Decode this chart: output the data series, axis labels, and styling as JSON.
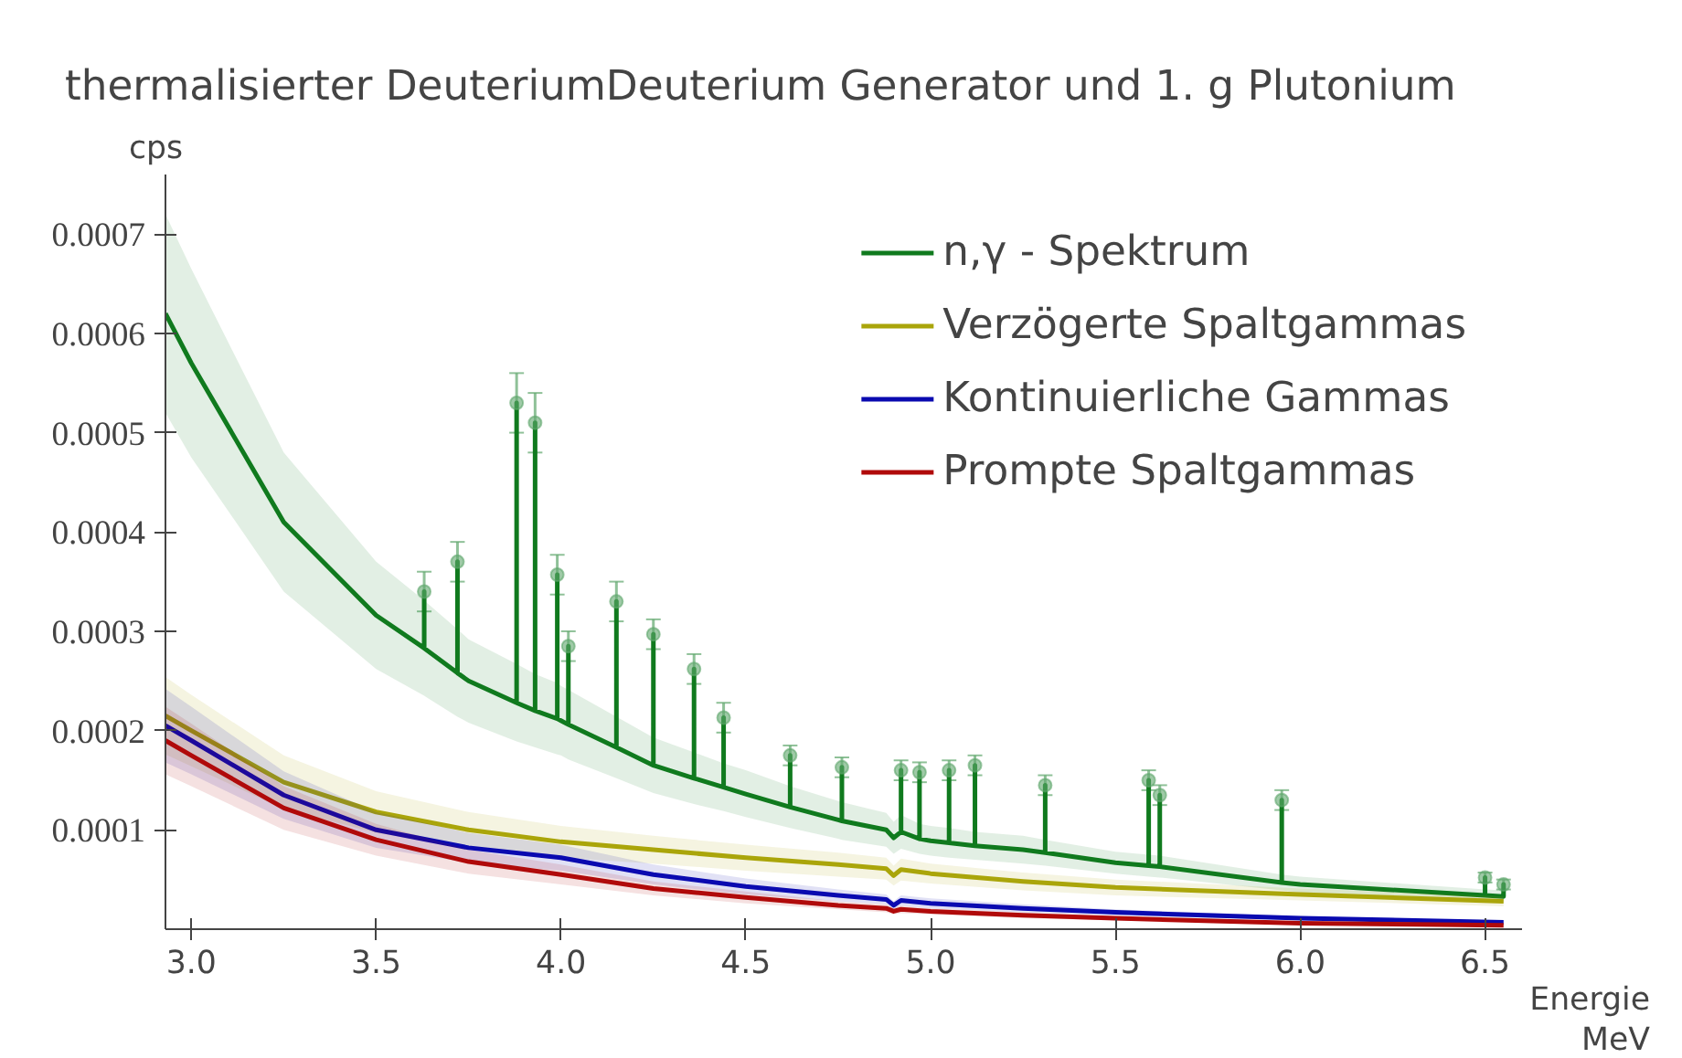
{
  "chart_data": {
    "type": "line",
    "title": "thermalisierter DeuteriumDeuterium Generator und 1. g Plutonium",
    "xlabel": "Energie\nMeV",
    "ylabel": "cps",
    "xlim": [
      2.93,
      6.6
    ],
    "ylim": [
      0,
      0.00076
    ],
    "xticks": [
      {
        "value": 3,
        "label": "3.0"
      },
      3.5,
      {
        "value": 4,
        "label": "4.0"
      },
      4.5,
      {
        "value": 5,
        "label": "5.0"
      },
      5.5,
      {
        "value": 6,
        "label": "6.0"
      },
      6.5
    ],
    "yticks": [
      0.0001,
      0.0002,
      0.0003,
      0.0004,
      0.0005,
      0.0006,
      0.0007
    ],
    "grid": false,
    "legend": "top right",
    "line_style": "solid",
    "series": [
      {
        "name": "n,γ - Spektrum",
        "color": "#107a1e",
        "x": [
          2.93,
          3.0,
          3.25,
          3.5,
          3.63,
          3.63,
          3.63,
          3.72,
          3.72,
          3.72,
          3.75,
          3.88,
          3.88,
          3.88,
          3.93,
          3.93,
          3.93,
          3.99,
          3.99,
          3.99,
          4.0,
          4.02,
          4.02,
          4.02,
          4.15,
          4.15,
          4.15,
          4.25,
          4.25,
          4.25,
          4.36,
          4.36,
          4.36,
          4.44,
          4.44,
          4.44,
          4.5,
          4.62,
          4.62,
          4.62,
          4.75,
          4.76,
          4.76,
          4.76,
          4.88,
          4.9,
          4.92,
          4.92,
          4.92,
          4.97,
          4.97,
          4.97,
          5.0,
          5.05,
          5.05,
          5.05,
          5.12,
          5.12,
          5.12,
          5.25,
          5.31,
          5.31,
          5.31,
          5.5,
          5.59,
          5.59,
          5.59,
          5.62,
          5.62,
          5.62,
          5.95,
          5.95,
          5.95,
          6.0,
          6.5,
          6.5,
          6.5,
          6.55,
          6.55,
          6.55
        ],
        "values": [
          0.00062,
          0.00057,
          0.00041,
          0.000316,
          0.000283,
          0.00034,
          0.000283,
          0.000258,
          0.00037,
          0.000258,
          0.00025,
          0.000228,
          0.00053,
          0.000228,
          0.00022,
          0.00051,
          0.00022,
          0.000212,
          0.000357,
          0.000212,
          0.00021,
          0.000206,
          0.000285,
          0.000206,
          0.000183,
          0.00033,
          0.000183,
          0.000165,
          0.000297,
          0.000165,
          0.000152,
          0.000262,
          0.000152,
          0.000143,
          0.000213,
          0.000143,
          0.000136,
          0.000123,
          0.000175,
          0.000123,
          0.00011,
          0.000109,
          0.000163,
          0.000109,
          0.0001,
          9.2e-05,
          9.8e-05,
          0.00016,
          9.8e-05,
          9.1e-05,
          0.000158,
          9.1e-05,
          8.9e-05,
          8.7e-05,
          0.00016,
          8.7e-05,
          8.4e-05,
          0.000165,
          8.4e-05,
          8e-05,
          7.7e-05,
          0.000145,
          7.7e-05,
          6.7e-05,
          6.4e-05,
          0.00015,
          6.4e-05,
          6.3e-05,
          0.000135,
          6.3e-05,
          4.7e-05,
          0.00013,
          4.7e-05,
          4.5e-05,
          3.4e-05,
          5.2e-05,
          3.4e-05,
          3.3e-05,
          4.5e-05,
          3.3e-05
        ],
        "upper": [
          0.00072,
          0.000665,
          0.00048,
          0.00037,
          0.000331,
          0.000331,
          0.000331,
          0.000302,
          0.000302,
          0.000302,
          0.000292,
          0.000267,
          0.000267,
          0.000267,
          0.000257,
          0.000257,
          0.000257,
          0.000248,
          0.000248,
          0.000248,
          0.000245,
          0.000241,
          0.000241,
          0.000241,
          0.000214,
          0.000214,
          0.000214,
          0.000193,
          0.000193,
          0.000193,
          0.000178,
          0.000178,
          0.000178,
          0.000167,
          0.000167,
          0.000167,
          0.00016,
          0.000144,
          0.000144,
          0.000144,
          0.000129,
          0.000128,
          0.000128,
          0.000128,
          0.000117,
          0.000108,
          0.000115,
          0.000115,
          0.000115,
          0.000106,
          0.000106,
          0.000106,
          0.000104,
          0.000102,
          0.000102,
          0.000102,
          9.8e-05,
          9.8e-05,
          9.8e-05,
          9.4e-05,
          9e-05,
          9e-05,
          9e-05,
          7.8e-05,
          7.5e-05,
          7.5e-05,
          7.5e-05,
          7.4e-05,
          7.4e-05,
          7.4e-05,
          5.5e-05,
          5.5e-05,
          5.5e-05,
          5.3e-05,
          4e-05,
          4e-05,
          4e-05,
          3.9e-05,
          3.9e-05,
          3.9e-05
        ],
        "lower": [
          0.00052,
          0.000475,
          0.00034,
          0.000262,
          0.000235,
          0.000235,
          0.000235,
          0.000214,
          0.000214,
          0.000214,
          0.000208,
          0.000189,
          0.000189,
          0.000189,
          0.000183,
          0.000183,
          0.000183,
          0.000176,
          0.000176,
          0.000176,
          0.000175,
          0.000171,
          0.000171,
          0.000171,
          0.000152,
          0.000152,
          0.000152,
          0.000137,
          0.000137,
          0.000137,
          0.000126,
          0.000126,
          0.000126,
          0.000119,
          0.000119,
          0.000119,
          0.000113,
          0.000102,
          0.000102,
          0.000102,
          9.1e-05,
          9e-05,
          9e-05,
          9e-05,
          8.3e-05,
          7.6e-05,
          8.1e-05,
          8.1e-05,
          8.1e-05,
          7.6e-05,
          7.6e-05,
          7.6e-05,
          7.4e-05,
          7.2e-05,
          7.2e-05,
          7.2e-05,
          7e-05,
          7e-05,
          7e-05,
          6.6e-05,
          6.4e-05,
          6.4e-05,
          6.4e-05,
          5.6e-05,
          5.3e-05,
          5.3e-05,
          5.3e-05,
          5.2e-05,
          5.2e-05,
          5.2e-05,
          3.9e-05,
          3.9e-05,
          3.9e-05,
          3.7e-05,
          2.8e-05,
          2.8e-05,
          2.8e-05,
          2.7e-05,
          2.7e-05,
          2.7e-05
        ]
      },
      {
        "type": "scatter",
        "marker": "circle",
        "color": "#5fa66c",
        "x": [
          3.63,
          3.72,
          3.88,
          3.93,
          3.99,
          4.02,
          4.15,
          4.25,
          4.36,
          4.44,
          4.62,
          4.76,
          4.92,
          4.97,
          5.05,
          5.12,
          5.31,
          5.59,
          5.62,
          5.95,
          6.5,
          6.55
        ],
        "values": [
          0.00034,
          0.00037,
          0.00053,
          0.00051,
          0.000357,
          0.000285,
          0.00033,
          0.000297,
          0.000262,
          0.000213,
          0.000175,
          0.000163,
          0.00016,
          0.000158,
          0.00016,
          0.000165,
          0.000145,
          0.00015,
          0.000135,
          0.00013,
          5.2e-05,
          4.5e-05
        ],
        "errors": [
          2e-05,
          2e-05,
          3e-05,
          3e-05,
          2e-05,
          1.5e-05,
          2e-05,
          1.5e-05,
          1.5e-05,
          1.5e-05,
          1e-05,
          1e-05,
          1e-05,
          1e-05,
          1e-05,
          1e-05,
          1e-05,
          1e-05,
          1e-05,
          1e-05,
          5e-06,
          5e-06
        ]
      },
      {
        "name": "Verzögerte Spaltgammas",
        "color": "#aaa50a",
        "x": [
          2.93,
          3.0,
          3.25,
          3.5,
          3.75,
          4.0,
          4.25,
          4.5,
          4.75,
          4.88,
          4.9,
          4.92,
          5.0,
          5.25,
          5.5,
          6.0,
          6.55
        ],
        "values": [
          0.000215,
          0.0002,
          0.000148,
          0.000118,
          0.0001,
          8.8e-05,
          8e-05,
          7.2e-05,
          6.5e-05,
          6.1e-05,
          5.4e-05,
          6e-05,
          5.6e-05,
          4.8e-05,
          4.2e-05,
          3.5e-05,
          2.8e-05
        ],
        "upper": [
          0.000254,
          0.000236,
          0.000175,
          0.000139,
          0.000118,
          0.000104,
          9.4e-05,
          8.5e-05,
          7.7e-05,
          7.2e-05,
          6.4e-05,
          7.1e-05,
          6.6e-05,
          5.7e-05,
          5e-05,
          4.1e-05,
          3.3e-05
        ],
        "lower": [
          0.000176,
          0.000164,
          0.000121,
          9.7e-05,
          8.2e-05,
          7.2e-05,
          6.6e-05,
          5.9e-05,
          5.3e-05,
          5e-05,
          4.4e-05,
          4.9e-05,
          4.6e-05,
          3.9e-05,
          3.4e-05,
          2.9e-05,
          2.3e-05
        ]
      },
      {
        "name": "Kontinuierliche Gammas",
        "color": "#0a0ab0",
        "x": [
          2.93,
          3.0,
          3.25,
          3.5,
          3.75,
          4.0,
          4.25,
          4.5,
          4.75,
          4.88,
          4.9,
          4.92,
          5.0,
          5.25,
          5.5,
          6.0,
          6.55
        ],
        "values": [
          0.000205,
          0.00019,
          0.000135,
          0.0001,
          8.2e-05,
          7.2e-05,
          5.5e-05,
          4.3e-05,
          3.4e-05,
          3e-05,
          2.4e-05,
          2.9e-05,
          2.6e-05,
          2.1e-05,
          1.7e-05,
          1.1e-05,
          7e-06
        ],
        "upper": [
          0.000242,
          0.000224,
          0.000159,
          0.000118,
          9.7e-05,
          8.5e-05,
          6.5e-05,
          5.1e-05,
          4e-05,
          3.5e-05,
          2.8e-05,
          3.4e-05,
          3.1e-05,
          2.5e-05,
          2e-05,
          1.3e-05,
          8e-06
        ],
        "lower": [
          0.000168,
          0.000156,
          0.000111,
          8.2e-05,
          6.7e-05,
          5.9e-05,
          4.5e-05,
          3.5e-05,
          2.8e-05,
          2.5e-05,
          2e-05,
          2.4e-05,
          2.1e-05,
          1.7e-05,
          1.4e-05,
          9e-06,
          6e-06
        ]
      },
      {
        "name": "Prompte Spaltgammas",
        "color": "#b00a0a",
        "x": [
          2.93,
          3.0,
          3.25,
          3.5,
          3.75,
          4.0,
          4.25,
          4.5,
          4.75,
          4.88,
          4.9,
          4.92,
          5.0,
          5.25,
          5.5,
          6.0,
          6.55
        ],
        "values": [
          0.00019,
          0.000175,
          0.000122,
          9e-05,
          6.8e-05,
          5.5e-05,
          4.1e-05,
          3.2e-05,
          2.4e-05,
          2.1e-05,
          1.8e-05,
          2e-05,
          1.8e-05,
          1.4e-05,
          1.1e-05,
          6e-06,
          4e-06
        ],
        "upper": [
          0.000224,
          0.000207,
          0.000144,
          0.000106,
          8e-05,
          6.5e-05,
          4.8e-05,
          3.8e-05,
          2.8e-05,
          2.5e-05,
          2.1e-05,
          2.4e-05,
          2.1e-05,
          1.7e-05,
          1.3e-05,
          7e-06,
          5e-06
        ],
        "lower": [
          0.000156,
          0.000144,
          0.0001,
          7.4e-05,
          5.6e-05,
          4.5e-05,
          3.4e-05,
          2.6e-05,
          2e-05,
          1.7e-05,
          1.5e-05,
          1.6e-05,
          1.5e-05,
          1.1e-05,
          9e-06,
          5e-06,
          3e-06
        ]
      }
    ]
  }
}
